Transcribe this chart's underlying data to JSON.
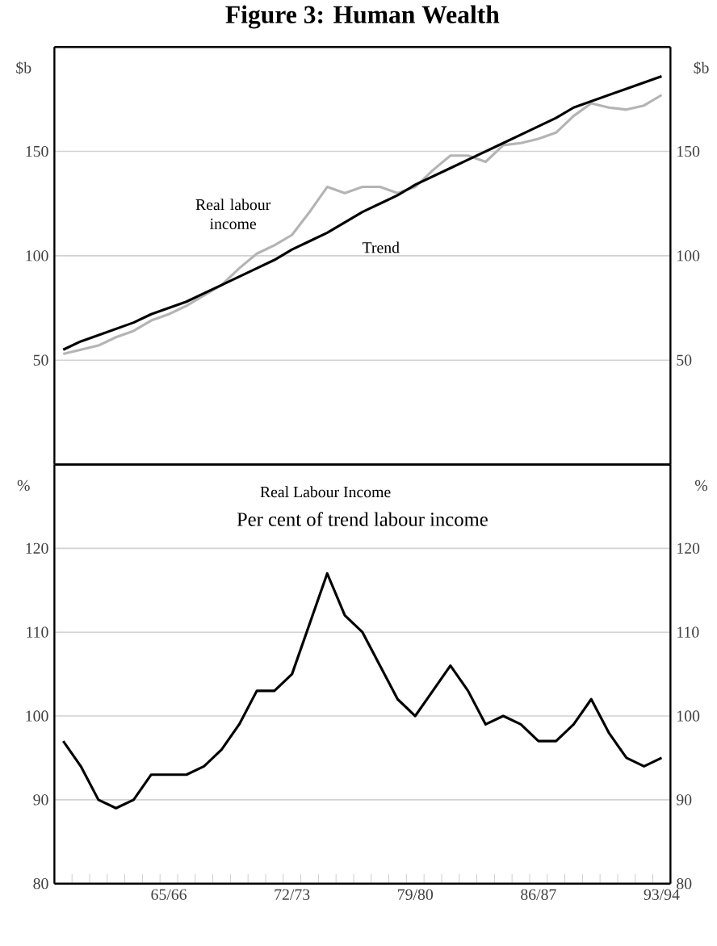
{
  "chart_data": [
    {
      "type": "line",
      "title": "Figure 3: Human Wealth",
      "ylabel": "$b",
      "y2label": "$b",
      "categories": [
        null,
        null,
        null,
        null,
        null,
        null,
        null,
        null,
        null,
        null,
        null,
        null,
        null,
        null,
        null,
        null,
        null,
        null,
        null,
        null,
        null,
        null,
        null,
        null,
        null,
        null,
        null,
        null,
        null,
        null,
        null,
        null,
        null,
        null,
        null
      ],
      "series": [
        {
          "name": "Real labour income",
          "color": "#b4b4b4",
          "values": [
            53,
            55,
            57,
            61,
            64,
            69,
            72,
            76,
            81,
            86,
            94,
            101,
            105,
            110,
            121,
            133,
            130,
            133,
            133,
            130,
            133,
            141,
            148,
            148,
            145,
            153,
            154,
            156,
            159,
            167,
            173,
            171,
            170,
            172,
            177
          ]
        },
        {
          "name": "Trend",
          "color": "#000000",
          "values": [
            55,
            59,
            62,
            65,
            68,
            72,
            75,
            78,
            82,
            86,
            90,
            94,
            98,
            103,
            107,
            111,
            116,
            121,
            125,
            129,
            134,
            138,
            142,
            146,
            150,
            154,
            158,
            162,
            166,
            171,
            174,
            177,
            180,
            183,
            186
          ]
        }
      ],
      "ylim": [
        0,
        200
      ],
      "yticks": [
        50,
        100,
        150
      ],
      "y2lim": [
        0,
        200
      ],
      "y2ticks": [
        50,
        100,
        150
      ],
      "grid": "y",
      "tick_labels": "y",
      "marker": "none",
      "line_style": "solid"
    },
    {
      "type": "line",
      "title": "Real Labour Income",
      "subtitle": "Per cent of trend labour income",
      "ylabel": "%",
      "y2label": "%",
      "categories": [
        null,
        null,
        null,
        null,
        null,
        null,
        "65/66",
        null,
        null,
        null,
        null,
        null,
        null,
        "72/73",
        null,
        null,
        null,
        null,
        null,
        null,
        "79/80",
        null,
        null,
        null,
        null,
        null,
        null,
        "86/87",
        null,
        null,
        null,
        null,
        null,
        null,
        "93/94"
      ],
      "series": [
        {
          "color": "#000000",
          "values": [
            97,
            94,
            90,
            89,
            90,
            93,
            93,
            93,
            94,
            96,
            99,
            103,
            103,
            105,
            111,
            117,
            112,
            110,
            106,
            102,
            100,
            103,
            106,
            103,
            99,
            100,
            99,
            97,
            97,
            99,
            102,
            98,
            95,
            94,
            95
          ]
        }
      ],
      "ylim": [
        80,
        130
      ],
      "yticks": [
        80,
        90,
        100,
        110,
        120
      ],
      "y2lim": [
        80,
        130
      ],
      "y2ticks": [
        80,
        90,
        100,
        110,
        120
      ],
      "grid": "y",
      "marker": "none",
      "line_style": "solid"
    }
  ]
}
